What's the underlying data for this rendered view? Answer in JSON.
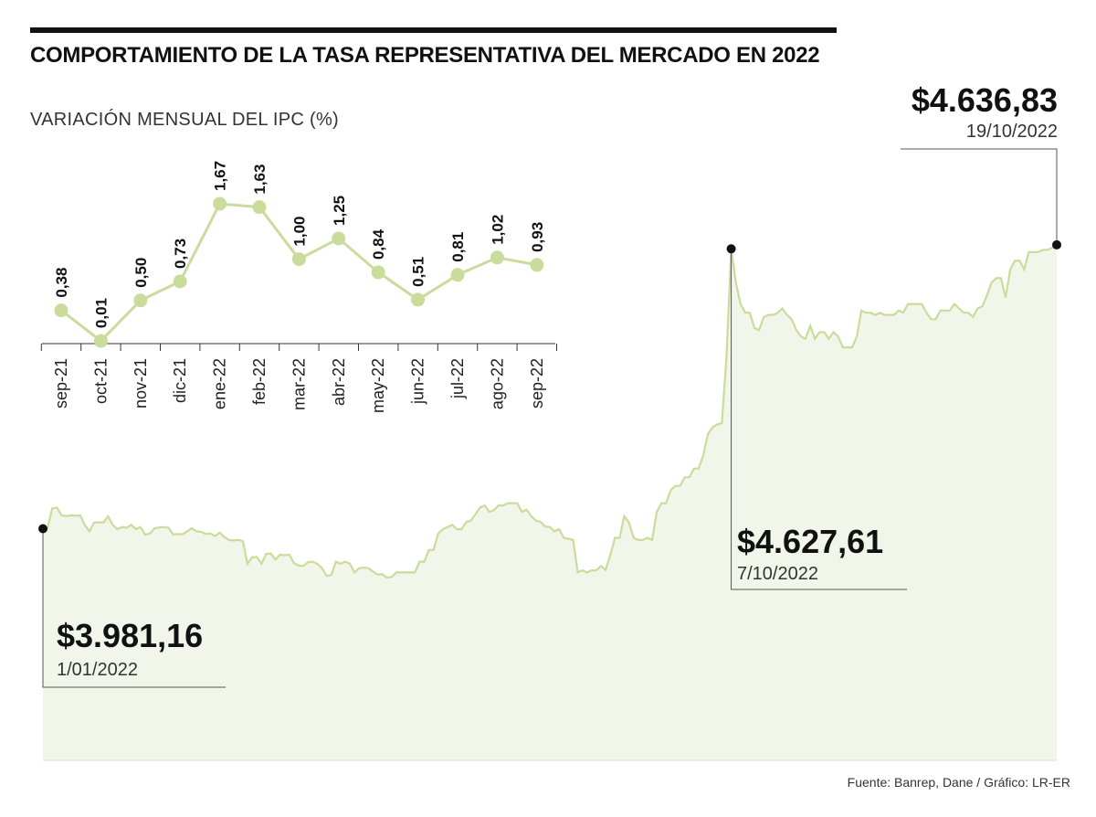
{
  "title": "COMPORTAMIENTO DE LA TASA REPRESENTATIVA DEL MERCADO EN 2022",
  "subtitle": "VARIACIÓN MENSUAL DEL IPC (%)",
  "source": "Fuente: Banrep, Dane / Gráfico: LR-ER",
  "colors": {
    "line": "#c9dc9c",
    "area": "#f2f6ea",
    "ink": "#111111"
  },
  "chart_data": [
    {
      "type": "line",
      "name": "ipc",
      "title": "VARIACIÓN MENSUAL DEL IPC (%)",
      "categories": [
        "sep-21",
        "oct-21",
        "nov-21",
        "dic-21",
        "ene-22",
        "feb-22",
        "mar-22",
        "abr-22",
        "may-22",
        "jun-22",
        "jul-22",
        "ago-22",
        "sep-22"
      ],
      "values": [
        0.38,
        0.01,
        0.5,
        0.73,
        1.67,
        1.63,
        1.0,
        1.25,
        0.84,
        0.51,
        0.81,
        1.02,
        0.93
      ],
      "labels": [
        "0,38",
        "0,01",
        "0,50",
        "0,73",
        "1,67",
        "1,63",
        "1,00",
        "1,25",
        "0,84",
        "0,51",
        "0,81",
        "1,02",
        "0,93"
      ],
      "ylim": [
        0,
        1.67
      ]
    },
    {
      "type": "area",
      "name": "trm",
      "title": "COMPORTAMIENTO DE LA TASA REPRESENTATIVA DEL MERCADO EN 2022",
      "xlabel": "",
      "ylabel": "",
      "ylim": [
        3750,
        4700
      ],
      "values": [
        3981.16,
        3983,
        4028,
        4030,
        4012,
        4010,
        4012,
        4011,
        4012,
        3990,
        3975,
        3995,
        3996,
        3995,
        4010,
        3990,
        3980,
        3985,
        3983,
        3990,
        3980,
        3985,
        3967,
        3970,
        3982,
        3984,
        3985,
        3983,
        3968,
        3969,
        3968,
        3975,
        3982,
        3975,
        3974,
        3969,
        3970,
        3964,
        3972,
        3962,
        3955,
        3954,
        3955,
        3952,
        3900,
        3915,
        3916,
        3900,
        3923,
        3924,
        3910,
        3921,
        3920,
        3921,
        3901,
        3896,
        3895,
        3904,
        3905,
        3900,
        3890,
        3872,
        3874,
        3905,
        3900,
        3905,
        3900,
        3880,
        3890,
        3891,
        3890,
        3882,
        3875,
        3876,
        3868,
        3870,
        3880,
        3880,
        3880,
        3880,
        3880,
        3905,
        3905,
        3932,
        3932,
        3970,
        3980,
        3985,
        3990,
        3980,
        3980,
        3996,
        4000,
        4014,
        4030,
        4035,
        4020,
        4024,
        4035,
        4035,
        4040,
        4040,
        4040,
        4020,
        4025,
        4010,
        4000,
        3997,
        3986,
        3985,
        3975,
        3980,
        3960,
        3958,
        3955,
        3880,
        3885,
        3880,
        3885,
        3885,
        3895,
        3886,
        3920,
        3960,
        3960,
        4010,
        3995,
        3960,
        3955,
        3955,
        3960,
        3955,
        4020,
        4040,
        4040,
        4070,
        4080,
        4080,
        4100,
        4100,
        4120,
        4120,
        4150,
        4200,
        4215,
        4222,
        4225,
        4380,
        4627.61,
        4550,
        4500,
        4480,
        4480,
        4445,
        4440,
        4470,
        4475,
        4475,
        4480,
        4490,
        4475,
        4465,
        4440,
        4425,
        4420,
        4450,
        4420,
        4435,
        4435,
        4420,
        4435,
        4425,
        4400,
        4400,
        4400,
        4425,
        4485,
        4480,
        4480,
        4475,
        4480,
        4475,
        4475,
        4475,
        4485,
        4480,
        4500,
        4500,
        4500,
        4500,
        4480,
        4465,
        4465,
        4485,
        4485,
        4485,
        4500,
        4490,
        4480,
        4480,
        4470,
        4490,
        4495,
        4520,
        4550,
        4560,
        4560,
        4515,
        4580,
        4600,
        4600,
        4580,
        4620,
        4620,
        4620,
        4625,
        4625,
        4630,
        4636.83
      ],
      "annotations": [
        {
          "value": "$3.981,16",
          "date": "1/01/2022",
          "position": "bottom-left"
        },
        {
          "value": "$4.627,61",
          "date": "7/10/2022",
          "position": "middle-right"
        },
        {
          "value": "$4.636,83",
          "date": "19/10/2022",
          "position": "top-right"
        }
      ]
    }
  ]
}
